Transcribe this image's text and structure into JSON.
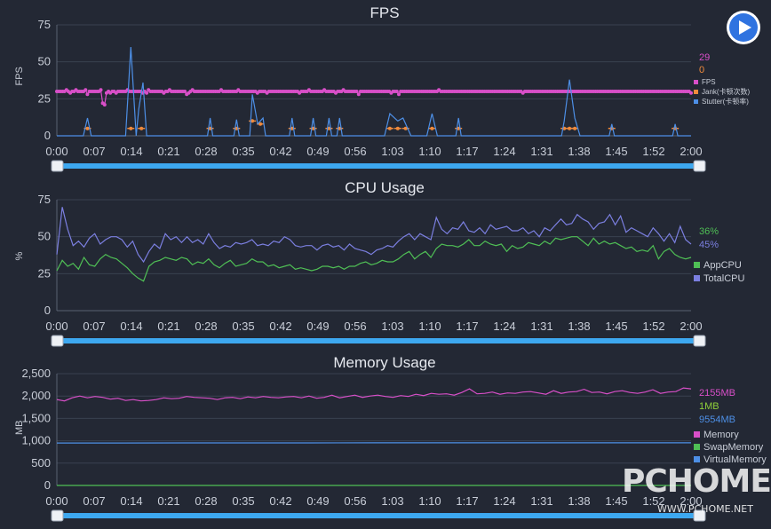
{
  "play_icon": "play-icon",
  "colors": {
    "pink": "#d84fc8",
    "orange": "#f08a3c",
    "blue": "#4d8fe6",
    "green": "#4fbf55",
    "purple": "#7b7fe0",
    "slider": "#3da8f0"
  },
  "watermark": {
    "logo": "PCHOME",
    "url": "WWW.PCHOME.NET"
  },
  "chart_data": [
    {
      "type": "line",
      "title": "FPS",
      "ylabel": "FPS",
      "ylim": [
        0,
        75
      ],
      "yticks": [
        "0",
        "25",
        "50",
        "75"
      ],
      "x_ticks": [
        "0:00",
        "0:07",
        "0:14",
        "0:21",
        "0:28",
        "0:35",
        "0:42",
        "0:49",
        "0:56",
        "1:03",
        "1:10",
        "1:17",
        "1:24",
        "1:31",
        "1:38",
        "1:45",
        "1:52",
        "2:00"
      ],
      "x_range_seconds": [
        0,
        120
      ],
      "current_values": [
        "29",
        "0"
      ],
      "series": [
        {
          "name": "FPS",
          "color": "#d84fc8",
          "markers": true,
          "values": [
            30,
            30,
            30,
            30,
            30,
            31,
            30,
            29,
            30,
            30,
            31,
            30,
            30,
            30,
            30,
            31,
            28,
            30,
            30,
            30,
            30,
            30,
            30,
            31,
            22,
            21,
            29,
            30,
            29,
            30,
            30,
            29,
            30,
            30,
            30,
            30,
            30,
            31,
            30,
            30,
            30,
            30,
            30,
            30,
            30,
            29,
            30,
            29,
            31,
            30,
            30,
            30,
            30,
            30,
            30,
            30,
            29,
            30,
            30,
            31,
            30,
            30,
            30,
            30,
            30,
            30,
            30,
            30,
            28,
            29,
            30,
            31,
            30,
            30,
            30,
            30,
            30,
            30,
            30,
            30,
            30,
            30,
            30,
            30,
            30,
            30,
            31,
            30,
            30,
            30,
            30,
            30,
            30,
            30,
            30,
            31,
            30,
            30,
            30,
            30,
            30,
            30,
            30,
            30,
            30,
            29,
            30,
            30,
            30,
            30,
            29,
            30,
            30,
            30,
            30,
            30,
            30,
            30,
            30,
            30,
            30,
            30,
            30,
            30,
            30,
            30,
            30,
            29,
            30,
            30,
            30,
            30,
            31,
            30,
            30,
            30,
            30,
            30,
            30,
            30,
            31,
            30,
            30,
            30,
            30,
            30,
            29,
            30,
            30,
            30,
            31,
            30,
            30,
            30,
            30,
            30,
            30,
            30,
            28,
            30,
            30,
            30,
            30,
            30,
            30,
            30,
            30,
            30,
            30,
            30,
            30,
            30,
            30,
            30,
            30,
            29,
            30,
            30,
            30,
            28,
            30,
            30,
            30,
            30,
            30,
            30,
            30,
            30,
            30,
            30,
            30,
            30,
            30,
            30,
            30,
            30,
            30,
            30,
            30,
            30,
            31,
            30,
            30,
            30,
            30,
            30,
            30,
            30,
            30,
            30,
            30,
            30,
            30,
            30,
            30,
            30,
            30,
            30,
            30,
            30,
            30,
            30,
            30,
            30,
            30,
            30,
            30,
            30,
            30,
            30,
            30,
            30,
            30,
            30,
            30,
            30,
            30,
            30,
            30,
            30,
            30,
            30,
            30,
            30,
            29,
            30,
            30,
            30,
            30,
            30,
            30,
            30,
            30,
            30,
            30,
            30,
            30,
            30,
            30,
            30,
            30,
            30,
            30,
            30,
            30,
            30,
            30,
            30,
            30,
            30,
            30,
            30,
            30,
            30,
            30,
            30,
            30,
            30,
            30,
            30,
            30,
            30,
            30,
            30,
            30,
            30,
            30,
            30,
            30,
            30,
            30,
            30,
            30,
            30,
            30,
            30,
            30,
            30,
            30,
            30,
            30,
            30,
            30,
            30,
            30,
            30,
            30,
            30,
            30,
            30,
            30,
            30,
            30,
            30,
            30,
            30,
            30,
            30,
            30,
            30,
            30,
            30,
            30,
            30,
            30,
            30,
            30,
            30,
            30,
            30,
            30,
            30,
            29
          ]
        },
        {
          "name": "Jank(卡顿次数)",
          "color": "#f08a3c",
          "markers": true,
          "values": [
            [
              5.8,
              5
            ],
            [
              14,
              5
            ],
            [
              16,
              5
            ],
            [
              29,
              5
            ],
            [
              34,
              5
            ],
            [
              37,
              10
            ],
            [
              38.5,
              8
            ],
            [
              44.5,
              5
            ],
            [
              48.5,
              5
            ],
            [
              51.5,
              5
            ],
            [
              53.5,
              5
            ],
            [
              63,
              5
            ],
            [
              64.5,
              5
            ],
            [
              66,
              5
            ],
            [
              71,
              5
            ],
            [
              76,
              5
            ],
            [
              96,
              5
            ],
            [
              97,
              5
            ],
            [
              98,
              5
            ],
            [
              105,
              5
            ],
            [
              117,
              5
            ]
          ]
        },
        {
          "name": "Stutter(卡顿率)",
          "color": "#4d8fe6",
          "markers": false,
          "values": [
            [
              0,
              0
            ],
            [
              5,
              0
            ],
            [
              5.8,
              12
            ],
            [
              6.5,
              0
            ],
            [
              13,
              0
            ],
            [
              14,
              60
            ],
            [
              15,
              0
            ],
            [
              15.5,
              18
            ],
            [
              16.3,
              36
            ],
            [
              17,
              0
            ],
            [
              28.5,
              0
            ],
            [
              29,
              12
            ],
            [
              29.5,
              0
            ],
            [
              33.5,
              0
            ],
            [
              34,
              11
            ],
            [
              34.5,
              0
            ],
            [
              36.5,
              0
            ],
            [
              37,
              28
            ],
            [
              38,
              8
            ],
            [
              39,
              12
            ],
            [
              39.5,
              0
            ],
            [
              44,
              0
            ],
            [
              44.5,
              12
            ],
            [
              45,
              0
            ],
            [
              48,
              0
            ],
            [
              48.5,
              12
            ],
            [
              49,
              0
            ],
            [
              51,
              0
            ],
            [
              51.5,
              12
            ],
            [
              52,
              0
            ],
            [
              53,
              0
            ],
            [
              53.5,
              12
            ],
            [
              54,
              0
            ],
            [
              62,
              0
            ],
            [
              63,
              15
            ],
            [
              64.5,
              10
            ],
            [
              65.5,
              12
            ],
            [
              67,
              0
            ],
            [
              70,
              0
            ],
            [
              71,
              15
            ],
            [
              72,
              0
            ],
            [
              75.5,
              0
            ],
            [
              76,
              12
            ],
            [
              76.5,
              0
            ],
            [
              95.5,
              0
            ],
            [
              96,
              10
            ],
            [
              97,
              38
            ],
            [
              98,
              12
            ],
            [
              99,
              0
            ],
            [
              104.5,
              0
            ],
            [
              105,
              8
            ],
            [
              105.5,
              0
            ],
            [
              116.5,
              0
            ],
            [
              117,
              8
            ],
            [
              117.5,
              0
            ],
            [
              120,
              0
            ]
          ]
        }
      ],
      "legend": [
        "FPS",
        "Jank(卡顿次数)",
        "Stutter(卡顿率)"
      ],
      "legend_placement": "right"
    },
    {
      "type": "line",
      "title": "CPU Usage",
      "ylabel": "%",
      "ylim": [
        0,
        75
      ],
      "yticks": [
        "0",
        "25",
        "50",
        "75"
      ],
      "x_ticks": [
        "0:00",
        "0:07",
        "0:14",
        "0:21",
        "0:28",
        "0:35",
        "0:42",
        "0:49",
        "0:56",
        "1:03",
        "1:10",
        "1:17",
        "1:24",
        "1:31",
        "1:38",
        "1:45",
        "1:52",
        "2:00"
      ],
      "current_values": [
        "36%",
        "45%"
      ],
      "series": [
        {
          "name": "AppCPU",
          "color": "#4fbf55",
          "values": [
            27,
            34,
            30,
            32,
            28,
            36,
            31,
            30,
            35,
            38,
            36,
            35,
            32,
            29,
            25,
            22,
            20,
            30,
            33,
            34,
            36,
            35,
            34,
            36,
            35,
            31,
            33,
            32,
            35,
            31,
            29,
            32,
            34,
            30,
            31,
            32,
            35,
            33,
            33,
            30,
            31,
            29,
            30,
            31,
            28,
            29,
            28,
            27,
            28,
            30,
            30,
            29,
            30,
            28,
            30,
            30,
            32,
            33,
            31,
            32,
            34,
            33,
            33,
            35,
            38,
            40,
            35,
            38,
            40,
            36,
            42,
            45,
            44,
            44,
            43,
            45,
            48,
            44,
            44,
            47,
            45,
            44,
            45,
            40,
            44,
            42,
            43,
            46,
            45,
            44,
            47,
            45,
            49,
            48,
            49,
            50,
            50,
            47,
            44,
            49,
            45,
            47,
            45,
            46,
            44,
            42,
            43,
            40,
            41,
            40,
            44,
            35,
            40,
            42,
            38,
            36,
            35,
            36
          ]
        },
        {
          "name": "TotalCPU",
          "color": "#7b7fe0",
          "values": [
            38,
            70,
            55,
            44,
            47,
            43,
            49,
            52,
            45,
            48,
            50,
            50,
            48,
            43,
            47,
            38,
            33,
            40,
            45,
            42,
            52,
            48,
            50,
            46,
            50,
            46,
            48,
            45,
            52,
            46,
            42,
            44,
            43,
            46,
            45,
            46,
            48,
            44,
            45,
            44,
            47,
            46,
            50,
            48,
            44,
            43,
            44,
            44,
            41,
            44,
            45,
            43,
            44,
            41,
            45,
            42,
            41,
            40,
            38,
            41,
            42,
            44,
            43,
            47,
            50,
            52,
            48,
            52,
            50,
            48,
            63,
            55,
            52,
            56,
            55,
            60,
            54,
            53,
            56,
            52,
            58,
            55,
            56,
            57,
            54,
            54,
            56,
            52,
            54,
            50,
            56,
            54,
            58,
            62,
            58,
            59,
            65,
            62,
            60,
            55,
            59,
            60,
            65,
            58,
            64,
            53,
            56,
            54,
            52,
            50,
            56,
            52,
            47,
            52,
            46,
            57,
            48,
            45
          ]
        }
      ],
      "legend": [
        "AppCPU",
        "TotalCPU"
      ],
      "legend_placement": "right"
    },
    {
      "type": "line",
      "title": "Memory Usage",
      "ylabel": "MB",
      "ylim": [
        0,
        2500
      ],
      "yticks": [
        "0",
        "500",
        "1,000",
        "1,500",
        "2,000",
        "2,500"
      ],
      "x_ticks": [
        "0:00",
        "0:07",
        "0:14",
        "0:21",
        "0:28",
        "0:35",
        "0:42",
        "0:49",
        "0:56",
        "1:03",
        "1:10",
        "1:17",
        "1:24",
        "1:31",
        "1:38",
        "1:45",
        "1:52",
        "2:00"
      ],
      "current_values": [
        "2155MB",
        "1MB",
        "9554MB"
      ],
      "series": [
        {
          "name": "Memory",
          "color": "#d84fc8",
          "values": [
            1920,
            1890,
            1960,
            2000,
            1960,
            1990,
            1970,
            1930,
            1950,
            1900,
            1920,
            1890,
            1900,
            1920,
            1960,
            1940,
            1950,
            1990,
            1970,
            1960,
            1950,
            1920,
            1960,
            1970,
            1940,
            1980,
            1960,
            1990,
            1970,
            1960,
            1980,
            1990,
            1960,
            2000,
            1950,
            1970,
            2020,
            1960,
            1990,
            2020,
            1970,
            2000,
            2020,
            1990,
            1970,
            2010,
            1990,
            2040,
            2010,
            2060,
            2040,
            2050,
            2020,
            2080,
            2160,
            2050,
            2060,
            2090,
            2040,
            2070,
            2060,
            2090,
            2100,
            2070,
            2040,
            2120,
            2060,
            2090,
            2100,
            2150,
            2080,
            2090,
            2050,
            2100,
            2120,
            2080,
            2060,
            2090,
            2140,
            2060,
            2090,
            2100,
            2180,
            2160
          ]
        },
        {
          "name": "SwapMemory",
          "color": "#4fbf55",
          "values": [
            1,
            1,
            1,
            1,
            1,
            1,
            1,
            1,
            1,
            1,
            1
          ]
        },
        {
          "name": "VirtualMemory",
          "color": "#4d8fe6",
          "values": [
            950,
            950,
            952,
            953,
            953,
            954,
            954,
            955,
            955,
            955,
            954
          ]
        }
      ],
      "legend": [
        "Memory",
        "SwapMemory",
        "VirtualMemory"
      ],
      "legend_placement": "right"
    }
  ]
}
